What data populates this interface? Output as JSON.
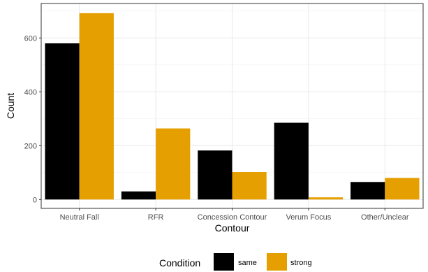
{
  "chart_data": {
    "type": "bar",
    "xlabel": "Contour",
    "ylabel": "Count",
    "categories": [
      "Neutral Fall",
      "RFR",
      "Concession Contour",
      "Verum Focus",
      "Other/Unclear"
    ],
    "series": [
      {
        "name": "same",
        "color": "#000000",
        "values": [
          580,
          30,
          182,
          285,
          65
        ]
      },
      {
        "name": "strong",
        "color": "#E69F00",
        "values": [
          692,
          264,
          102,
          8,
          80
        ]
      }
    ],
    "ylim": [
      -33,
      728
    ],
    "yticks": [
      0,
      200,
      400,
      600
    ],
    "grid": true,
    "legend": {
      "title": "Condition",
      "placement": "bottom"
    }
  }
}
